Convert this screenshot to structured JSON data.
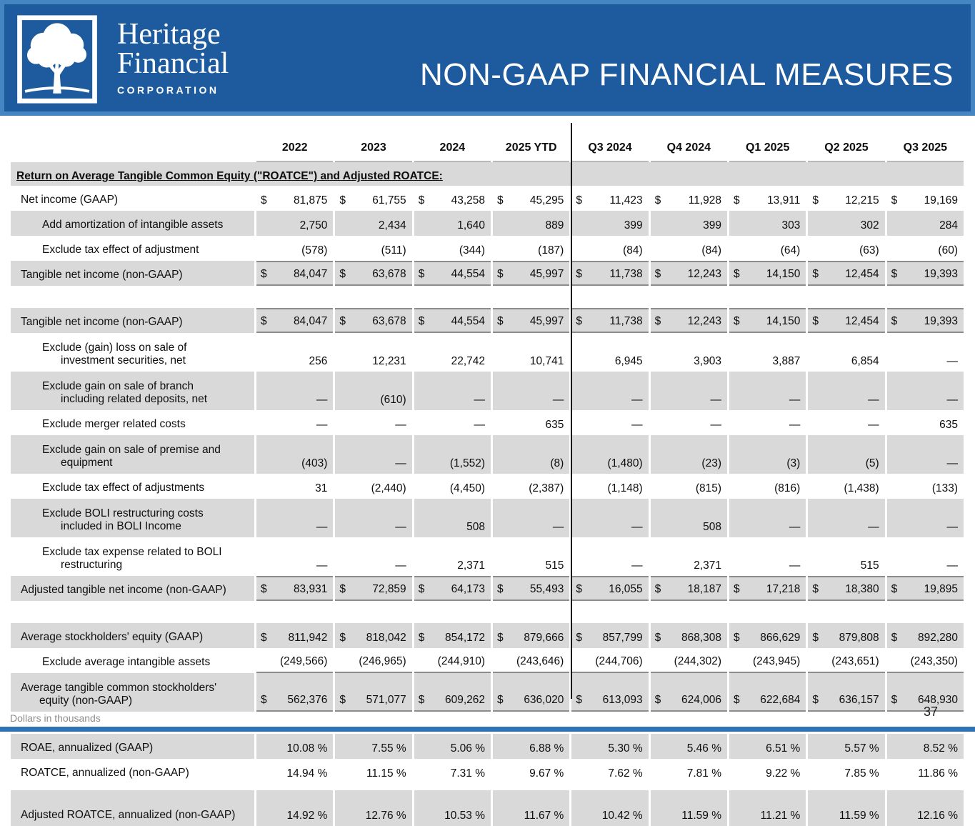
{
  "header": {
    "logo_line1": "Heritage",
    "logo_line2": "Financial",
    "logo_sub": "CORPORATION",
    "title": "NON-GAAP FINANCIAL MEASURES"
  },
  "colors": {
    "header_blue": "#1e5b9e",
    "header_frame_blue": "#4586c2",
    "bottom_bar_blue": "#2e74b5",
    "row_shade_gray": "#d9d9d9"
  },
  "table": {
    "currency_symbol": "$",
    "columns": [
      "2022",
      "2023",
      "2024",
      "2025 YTD",
      "Q3 2024",
      "Q4 2024",
      "Q1 2025",
      "Q2 2025",
      "Q3 2025"
    ],
    "rows": [
      {
        "type": "section",
        "label": "Return on Average Tangible Common Equity (\"ROATCE\") and Adjusted ROATCE:",
        "shaded": true
      },
      {
        "type": "data",
        "label": "Net income (GAAP)",
        "dollar": true,
        "values": [
          "81,875",
          "61,755",
          "43,258",
          "45,295",
          "11,423",
          "11,928",
          "13,911",
          "12,215",
          "19,169"
        ]
      },
      {
        "type": "data",
        "label": "Add amortization of intangible assets",
        "indent": true,
        "shaded": true,
        "values": [
          "2,750",
          "2,434",
          "1,640",
          "889",
          "399",
          "399",
          "303",
          "302",
          "284"
        ]
      },
      {
        "type": "data",
        "label": "Exclude tax effect of adjustment",
        "indent": true,
        "values": [
          "(578)",
          "(511)",
          "(344)",
          "(187)",
          "(84)",
          "(84)",
          "(64)",
          "(63)",
          "(60)"
        ]
      },
      {
        "type": "data",
        "label": "Tangible net income (non-GAAP)",
        "dollar": true,
        "shaded": true,
        "total": true,
        "values": [
          "84,047",
          "63,678",
          "44,554",
          "45,997",
          "11,738",
          "12,243",
          "14,150",
          "12,454",
          "19,393"
        ]
      },
      {
        "type": "spacer"
      },
      {
        "type": "data",
        "label": "Tangible net income (non-GAAP)",
        "dollar": true,
        "shaded": true,
        "total": true,
        "values": [
          "84,047",
          "63,678",
          "44,554",
          "45,997",
          "11,738",
          "12,243",
          "14,150",
          "12,454",
          "19,393"
        ]
      },
      {
        "type": "data",
        "label": "Exclude (gain) loss on sale of",
        "label2": "investment securities, net",
        "indent": true,
        "values": [
          "256",
          "12,231",
          "22,742",
          "10,741",
          "6,945",
          "3,903",
          "3,887",
          "6,854",
          "—"
        ]
      },
      {
        "type": "data",
        "label": "Exclude gain on sale of branch",
        "label2": "including related deposits, net",
        "indent": true,
        "shaded": true,
        "values": [
          "—",
          "(610)",
          "—",
          "—",
          "—",
          "—",
          "—",
          "—",
          "—"
        ]
      },
      {
        "type": "data",
        "label": "Exclude merger related costs",
        "indent": true,
        "values": [
          "—",
          "—",
          "—",
          "635",
          "—",
          "—",
          "—",
          "—",
          "635"
        ]
      },
      {
        "type": "data",
        "label": "Exclude gain on sale of premise and",
        "label2": "equipment",
        "indent": true,
        "shaded": true,
        "values": [
          "(403)",
          "—",
          "(1,552)",
          "(8)",
          "(1,480)",
          "(23)",
          "(3)",
          "(5)",
          "—"
        ]
      },
      {
        "type": "data",
        "label": "Exclude tax effect of adjustments",
        "indent": true,
        "values": [
          "31",
          "(2,440)",
          "(4,450)",
          "(2,387)",
          "(1,148)",
          "(815)",
          "(816)",
          "(1,438)",
          "(133)"
        ]
      },
      {
        "type": "data",
        "label": "Exclude BOLI restructuring costs",
        "label2": "included in BOLI Income",
        "indent": true,
        "shaded": true,
        "values": [
          "—",
          "—",
          "508",
          "—",
          "—",
          "508",
          "—",
          "—",
          "—"
        ]
      },
      {
        "type": "data",
        "label": "Exclude tax expense related to BOLI",
        "label2": "restructuring",
        "indent": true,
        "values": [
          "—",
          "—",
          "2,371",
          "515",
          "—",
          "2,371",
          "—",
          "515",
          "—"
        ]
      },
      {
        "type": "data",
        "label": "Adjusted tangible net income (non-GAAP)",
        "dollar": true,
        "shaded": true,
        "total": true,
        "values": [
          "83,931",
          "72,859",
          "64,173",
          "55,493",
          "16,055",
          "18,187",
          "17,218",
          "18,380",
          "19,895"
        ]
      },
      {
        "type": "spacer"
      },
      {
        "type": "data",
        "label": "Average stockholders' equity (GAAP)",
        "dollar": true,
        "shaded": true,
        "values": [
          "811,942",
          "818,042",
          "854,172",
          "879,666",
          "857,799",
          "868,308",
          "866,629",
          "879,808",
          "892,280"
        ]
      },
      {
        "type": "data",
        "label": "Exclude average intangible assets",
        "indent": true,
        "rule_below": true,
        "values": [
          "(249,566)",
          "(246,965)",
          "(244,910)",
          "(243,646)",
          "(244,706)",
          "(244,302)",
          "(243,945)",
          "(243,651)",
          "(243,350)"
        ]
      },
      {
        "type": "data",
        "label": "Average tangible common stockholders'",
        "label2": "equity (non-GAAP)",
        "dollar": true,
        "shaded": true,
        "rule_below": true,
        "values": [
          "562,376",
          "571,077",
          "609,262",
          "636,020",
          "613,093",
          "624,006",
          "622,684",
          "636,157",
          "648,930"
        ]
      },
      {
        "type": "spacer"
      },
      {
        "type": "data",
        "label": "ROAE, annualized (GAAP)",
        "shaded": true,
        "values": [
          "10.08 %",
          "7.55 %",
          "5.06 %",
          "6.88 %",
          "5.30 %",
          "5.46 %",
          "6.51 %",
          "5.57 %",
          "8.52 %"
        ]
      },
      {
        "type": "data",
        "label": "ROATCE, annualized (non-GAAP)",
        "values": [
          "14.94 %",
          "11.15 %",
          "7.31 %",
          "9.67 %",
          "7.62 %",
          "7.81 %",
          "9.22 %",
          "7.85 %",
          "11.86 %"
        ]
      },
      {
        "type": "spacer",
        "size": "small"
      },
      {
        "type": "data",
        "label": "Adjusted ROATCE, annualized (non-GAAP)",
        "shaded": true,
        "tall": true,
        "values": [
          "14.92 %",
          "12.76 %",
          "10.53 %",
          "11.67 %",
          "10.42 %",
          "11.59 %",
          "11.21 %",
          "11.59 %",
          "12.16 %"
        ]
      }
    ]
  },
  "footer": {
    "note": "Dollars in thousands",
    "page": "37"
  }
}
